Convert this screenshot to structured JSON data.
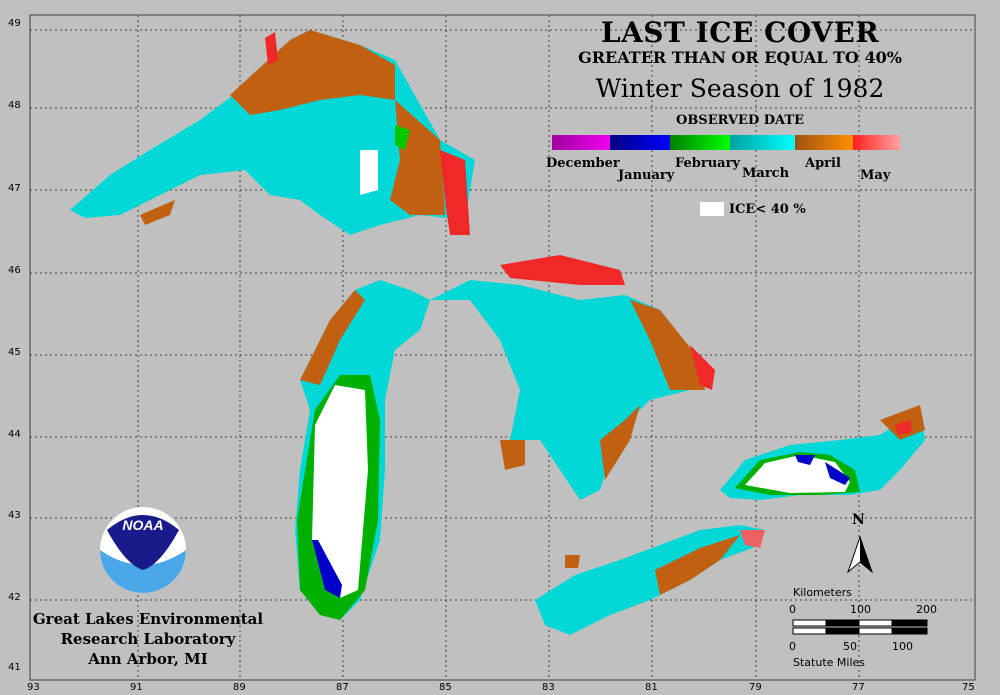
{
  "title": {
    "line1": "LAST ICE COVER",
    "line2": "GREATER THAN OR EQUAL TO 40%",
    "line3": "Winter Season of 1982"
  },
  "legend": {
    "heading": "OBSERVED DATE",
    "months": [
      "December",
      "January",
      "February",
      "March",
      "April",
      "May"
    ],
    "ice_label": "ICE< 40 %",
    "colors": {
      "december": "#e000e0",
      "january": "#0000c8",
      "february": "#00c800",
      "march": "#00d8d8",
      "april": "#c06010",
      "may": "#f02828",
      "ice_lt_40": "#ffffff"
    }
  },
  "axes": {
    "longitudes": [
      "93",
      "91",
      "89",
      "87",
      "85",
      "83",
      "81",
      "79",
      "77",
      "75"
    ],
    "latitudes": [
      "49",
      "48",
      "47",
      "46",
      "45",
      "44",
      "43",
      "42",
      "41"
    ]
  },
  "scale": {
    "km_label": "Kilometers",
    "km_ticks": [
      "0",
      "100",
      "200"
    ],
    "mi_ticks": [
      "0",
      "50",
      "100"
    ],
    "mi_label": "Statute Miles"
  },
  "north_label": "N",
  "logo_text": "NOAA",
  "organization": {
    "line1": "Great Lakes Environmental",
    "line2": "Research Laboratory",
    "line3": "Ann Arbor, MI"
  }
}
